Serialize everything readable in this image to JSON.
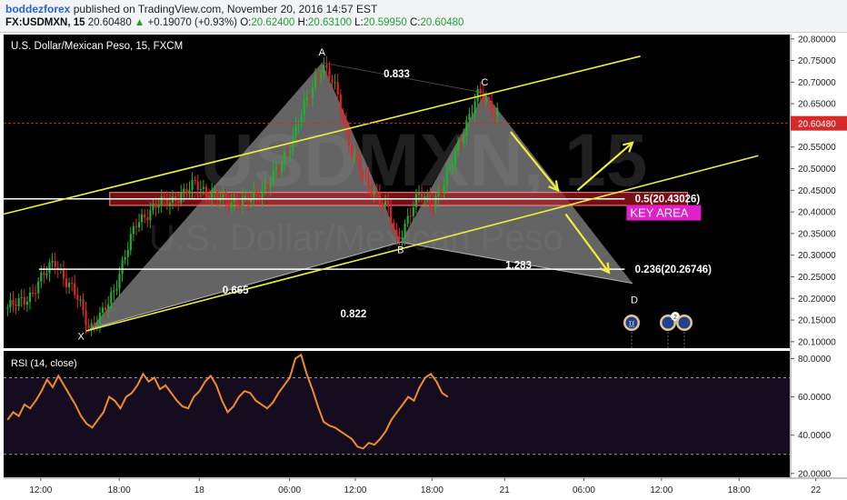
{
  "header": {
    "author": "boddezforex",
    "published_text": "published on TradingView.com, November 20, 2016 14:57 EST",
    "symbol": "FX:USDMXN, 15",
    "last": "20.60480",
    "change": "+0.19070 (+0.93%)",
    "o_label": "O:",
    "o_value": "20.62400",
    "h_label": "H:",
    "h_value": "20.63100",
    "l_label": "L:",
    "l_value": "20.59950",
    "c_label": "C:",
    "c_value": "20.60480"
  },
  "colors": {
    "background": "#000000",
    "rsi_band": "#150c1f",
    "candle_up": "#22b030",
    "candle_down": "#e0262a",
    "pattern_fill": "#8a8a8a",
    "channel": "#f2ee3c",
    "rsi_line": "#f28c28",
    "price_line": "#d42a2a",
    "key_area": "#e020c8",
    "zone_fill": "#a8141c"
  },
  "chart_data": [
    {
      "type": "candlestick",
      "title": "U.S. Dollar/Mexican Peso, 15, FXCM",
      "watermark_symbol": "USDMXN, 15",
      "watermark_name": "U.S. Dollar/Mexican Peso",
      "ylim": [
        20.085,
        20.81
      ],
      "y_ticks": [
        "20.80000",
        "20.75000",
        "20.70000",
        "20.65000",
        "20.55000",
        "20.50000",
        "20.45000",
        "20.40000",
        "20.35000",
        "20.30000",
        "20.25000",
        "20.20000",
        "20.15000",
        "20.10000"
      ],
      "x_ticks": [
        "12:00",
        "18:00",
        "18",
        "06:00",
        "12:00",
        "18:00",
        "21",
        "06:00",
        "12:00",
        "18:00",
        "22"
      ],
      "current_price": "20.60480",
      "price_path": [
        [
          0,
          20.175
        ],
        [
          0.02,
          20.19
        ],
        [
          0.035,
          20.21
        ],
        [
          0.05,
          20.25
        ],
        [
          0.065,
          20.29
        ],
        [
          0.08,
          20.235
        ],
        [
          0.095,
          20.2
        ],
        [
          0.11,
          20.13
        ],
        [
          0.125,
          20.16
        ],
        [
          0.14,
          20.22
        ],
        [
          0.155,
          20.3
        ],
        [
          0.17,
          20.38
        ],
        [
          0.185,
          20.4
        ],
        [
          0.2,
          20.42
        ],
        [
          0.215,
          20.43
        ],
        [
          0.23,
          20.44
        ],
        [
          0.245,
          20.47
        ],
        [
          0.26,
          20.44
        ],
        [
          0.275,
          20.43
        ],
        [
          0.29,
          20.425
        ],
        [
          0.305,
          20.42
        ],
        [
          0.32,
          20.44
        ],
        [
          0.335,
          20.46
        ],
        [
          0.35,
          20.5
        ],
        [
          0.365,
          20.56
        ],
        [
          0.38,
          20.63
        ],
        [
          0.395,
          20.7
        ],
        [
          0.405,
          20.74
        ],
        [
          0.415,
          20.71
        ],
        [
          0.425,
          20.67
        ],
        [
          0.435,
          20.59
        ],
        [
          0.445,
          20.53
        ],
        [
          0.46,
          20.47
        ],
        [
          0.475,
          20.44
        ],
        [
          0.49,
          20.4
        ],
        [
          0.5,
          20.33
        ],
        [
          0.51,
          20.37
        ],
        [
          0.52,
          20.41
        ],
        [
          0.53,
          20.44
        ],
        [
          0.545,
          20.42
        ],
        [
          0.56,
          20.46
        ],
        [
          0.575,
          20.54
        ],
        [
          0.59,
          20.61
        ],
        [
          0.605,
          20.675
        ],
        [
          0.615,
          20.66
        ],
        [
          0.625,
          20.63
        ]
      ],
      "pattern_points": [
        {
          "label": "X",
          "x": 0.11,
          "y": 20.13
        },
        {
          "label": "A",
          "x": 0.405,
          "y": 20.745
        },
        {
          "label": "B",
          "x": 0.505,
          "y": 20.33
        },
        {
          "label": "C",
          "x": 0.612,
          "y": 20.675
        },
        {
          "label": "D",
          "x": 0.8,
          "y": 20.235
        }
      ],
      "ratios": [
        {
          "text": "0.833",
          "x": 0.5,
          "y": 20.72
        },
        {
          "text": "0.665",
          "x": 0.295,
          "y": 20.22
        },
        {
          "text": "0.822",
          "x": 0.445,
          "y": 20.165
        },
        {
          "text": "1.283",
          "x": 0.655,
          "y": 20.277
        }
      ],
      "fib_levels": [
        {
          "label": "0.5(20.43026)",
          "value": 20.43026
        },
        {
          "label": "0.236(20.26746)",
          "value": 20.26746
        }
      ],
      "zone": {
        "from": 20.415,
        "to": 20.445,
        "x_start": 0.135,
        "x_end": 0.87
      },
      "key_area_label": "KEY AREA",
      "channel_lines": [
        {
          "x1": 0.0,
          "y1": 20.395,
          "x2": 0.81,
          "y2": 20.76
        },
        {
          "x1": 0.105,
          "y1": 20.125,
          "x2": 0.96,
          "y2": 20.53
        }
      ],
      "arrows": [
        {
          "x1": 0.645,
          "y1": 20.585,
          "x2": 0.705,
          "y2": 20.45
        },
        {
          "x1": 0.73,
          "y1": 20.45,
          "x2": 0.8,
          "y2": 20.56
        },
        {
          "x1": 0.715,
          "y1": 20.395,
          "x2": 0.77,
          "y2": 20.26
        }
      ]
    },
    {
      "type": "line",
      "title": "RSI (14, close)",
      "ylim": [
        18,
        84
      ],
      "y_ticks": [
        "80.0000",
        "60.0000",
        "40.0000",
        "20.0000"
      ],
      "bands": [
        30,
        70
      ],
      "values": [
        48,
        52,
        50,
        56,
        54,
        58,
        63,
        69,
        65,
        71,
        66,
        61,
        56,
        50,
        46,
        44,
        48,
        52,
        60,
        58,
        54,
        60,
        62,
        66,
        72,
        68,
        70,
        64,
        66,
        62,
        58,
        55,
        54,
        60,
        63,
        68,
        71,
        66,
        58,
        52,
        55,
        60,
        63,
        62,
        58,
        56,
        54,
        57,
        62,
        66,
        70,
        80,
        82,
        72,
        64,
        55,
        47,
        45,
        44,
        42,
        40,
        38,
        34,
        33,
        36,
        35,
        38,
        42,
        48,
        52,
        56,
        60,
        58,
        65,
        70,
        72,
        68,
        62,
        60
      ]
    }
  ]
}
